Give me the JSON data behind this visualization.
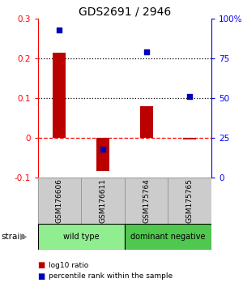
{
  "title": "GDS2691 / 2946",
  "samples": [
    "GSM176606",
    "GSM176611",
    "GSM175764",
    "GSM175765"
  ],
  "log10_ratio": [
    0.215,
    -0.082,
    0.08,
    -0.003
  ],
  "percentile_rank": [
    93,
    18,
    79,
    51
  ],
  "groups": [
    {
      "label": "wild type",
      "color": "#90ee90",
      "samples": [
        0,
        1
      ]
    },
    {
      "label": "dominant negative",
      "color": "#50c850",
      "samples": [
        2,
        3
      ]
    }
  ],
  "ylim_left": [
    -0.1,
    0.3
  ],
  "ylim_right": [
    0,
    100
  ],
  "bar_color": "#bb0000",
  "dot_color": "#0000bb",
  "left_yticks": [
    -0.1,
    0.0,
    0.1,
    0.2,
    0.3
  ],
  "right_yticks": [
    0,
    25,
    50,
    75,
    100
  ],
  "legend_red_label": "log10 ratio",
  "legend_blue_label": "percentile rank within the sample",
  "sample_box_color": "#cccccc",
  "sample_box_edge": "#999999",
  "group_box_edge": "#000000"
}
